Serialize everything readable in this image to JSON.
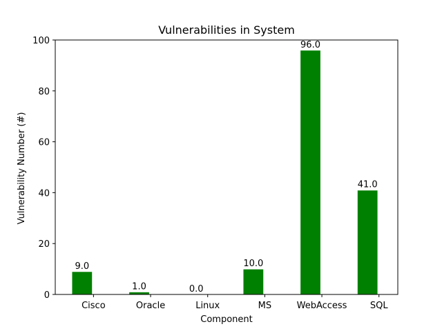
{
  "chart_data": {
    "type": "bar",
    "title": "Vulnerabilities in System",
    "xlabel": "Component",
    "ylabel": "Vulnerability Number (#)",
    "categories": [
      "Cisco",
      "Oracle",
      "Linux",
      "MS",
      "WebAccess",
      "SQL"
    ],
    "values": [
      9.0,
      1.0,
      0.0,
      10.0,
      96.0,
      41.0
    ],
    "data_labels": [
      "9.0",
      "1.0",
      "0.0",
      "10.0",
      "96.0",
      "41.0"
    ],
    "ylim": [
      0,
      100
    ],
    "yticks": [
      0,
      20,
      40,
      60,
      80,
      100
    ],
    "bar_color": "#008000",
    "bar_edge_color": "#ffffff",
    "grid": false,
    "legend": "none"
  }
}
